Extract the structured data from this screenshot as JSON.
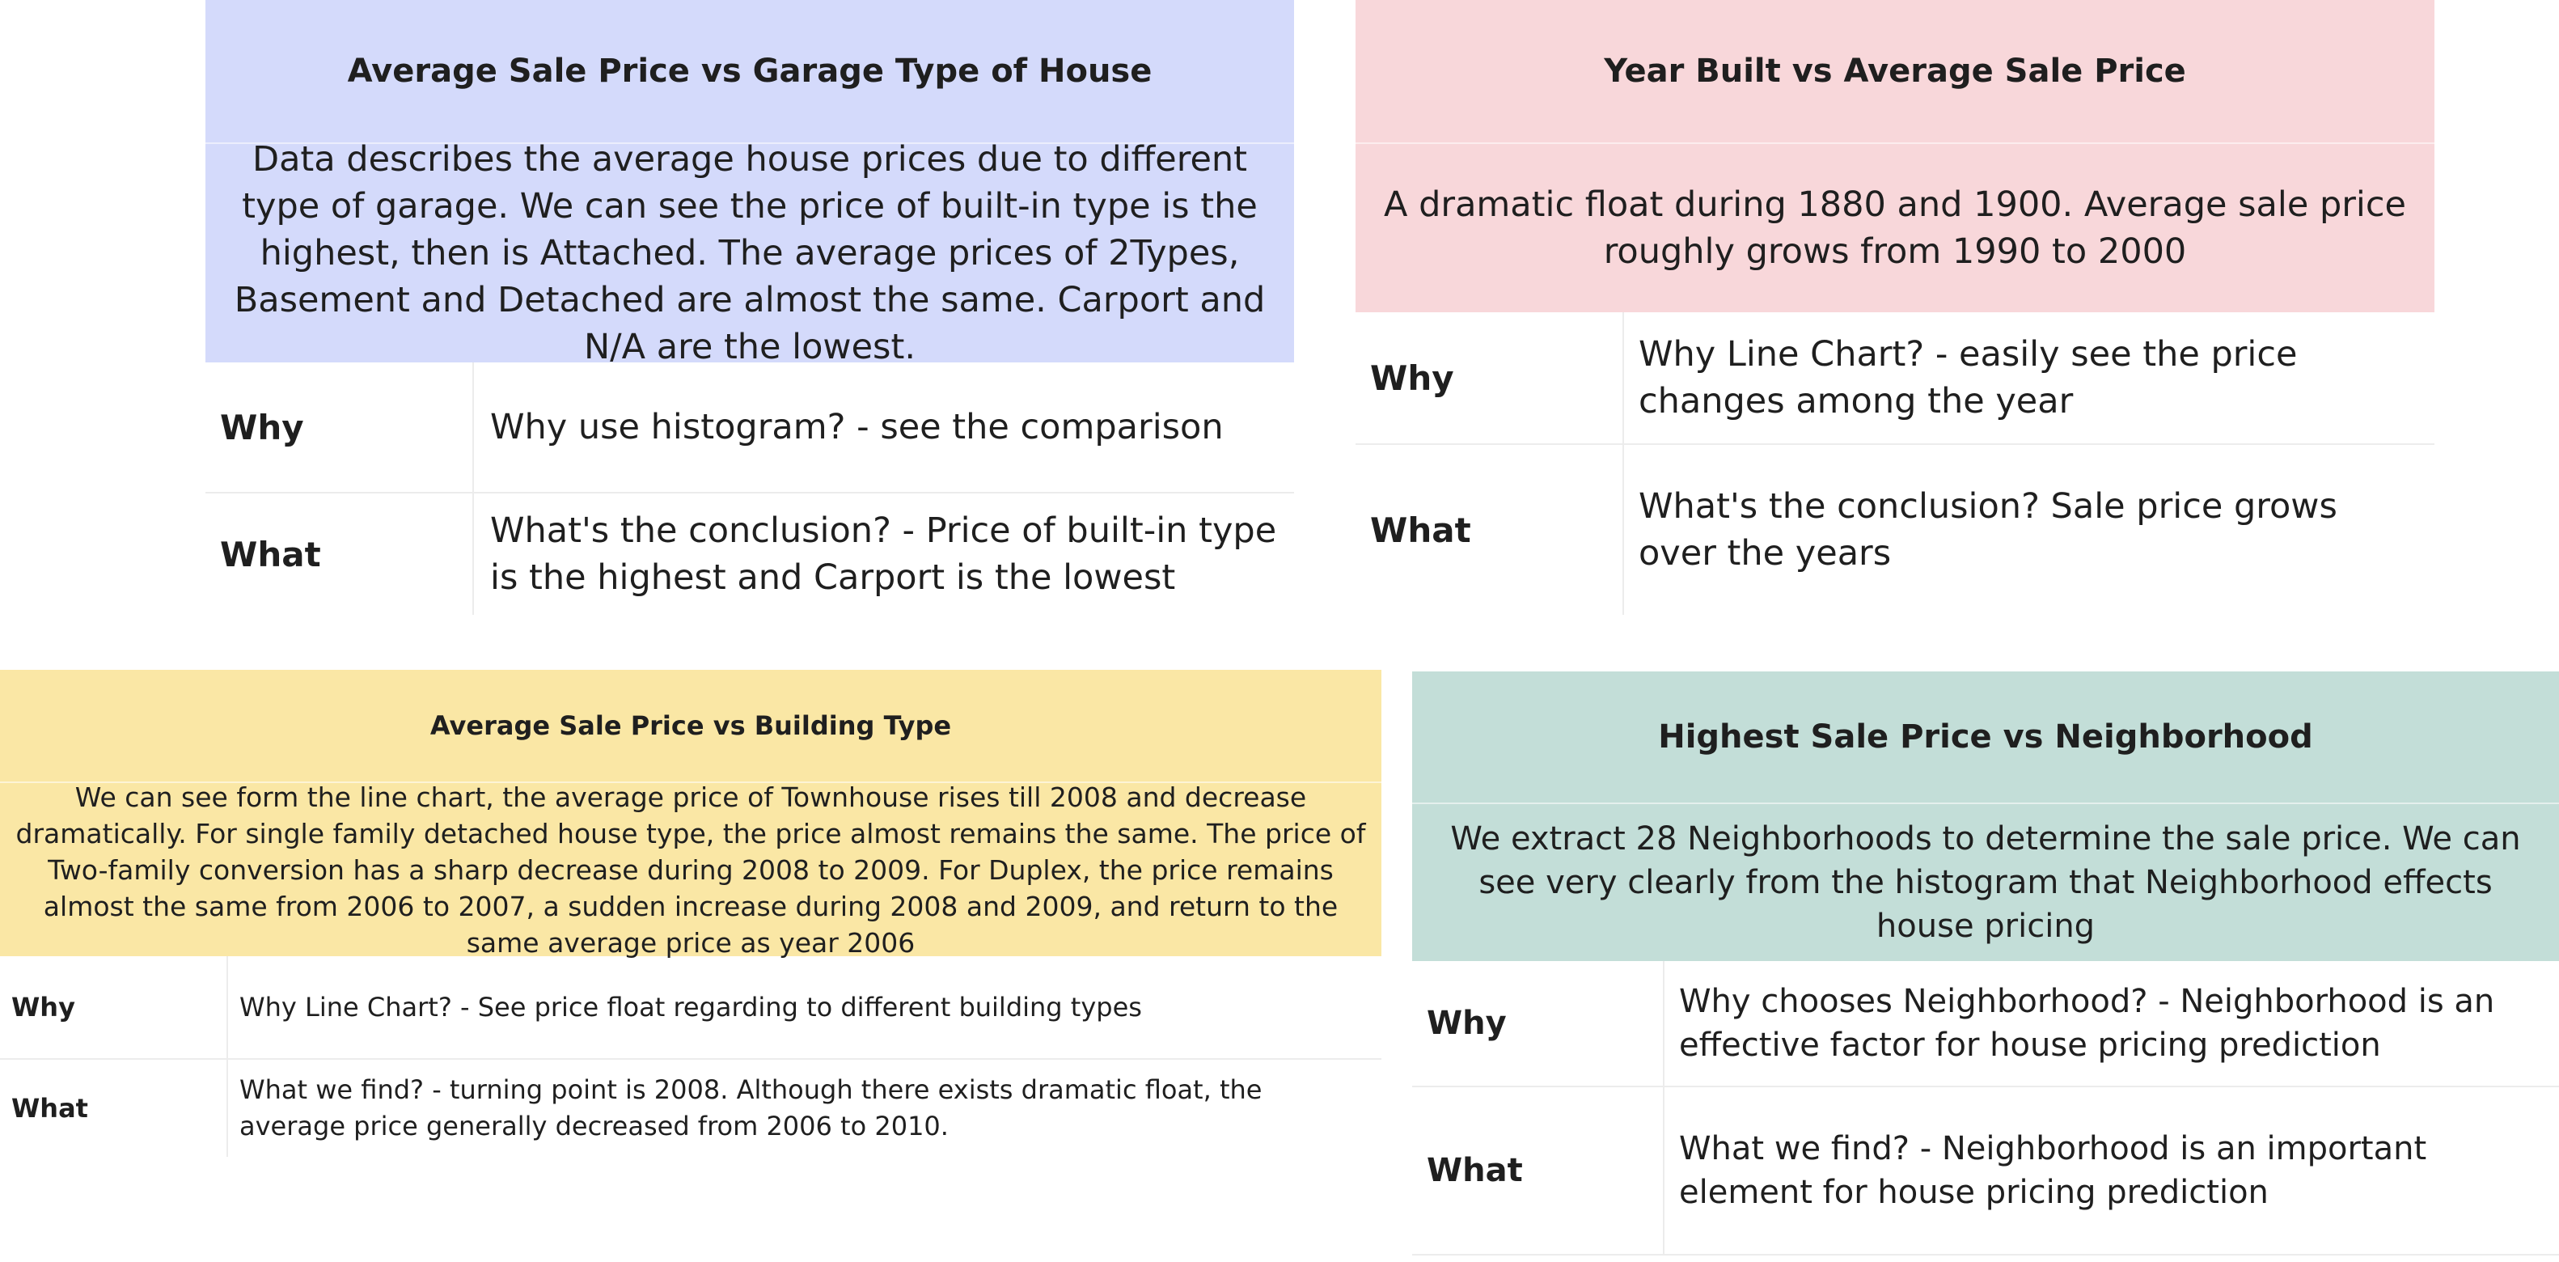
{
  "cards": [
    {
      "title": "Average Sale Price vs Garage Type of House",
      "description": "Data describes the average house prices due to different type of garage.  We can see the price of built-in type is the highest, then is Attached.  The average prices of 2Types, Basement and Detached are almost the same.  Carport and N/A are the lowest.",
      "why_label": "Why",
      "why_text": "Why use histogram?  -  see the comparison",
      "what_label": "What",
      "what_text": "What's the conclusion? - Price of built-in type is the highest and Carport is the lowest",
      "color": "#d4dafb"
    },
    {
      "title": "Year Built vs Average Sale Price",
      "description": "A dramatic float during 1880 and 1900. Average sale price roughly grows from 1990 to 2000",
      "why_label": "Why",
      "why_text": "Why Line Chart?  - easily see the price changes among the year",
      "what_label": "What",
      "what_text": "What's the conclusion? Sale price grows over the years",
      "color": "#f8d7da"
    },
    {
      "title": "Average Sale Price vs Building Type",
      "description": "We can see form the line chart, the average price of Townhouse rises till 2008 and decrease dramatically. For single family detached house type, the price almost remains the same.  The price of Two-family conversion has a sharp decrease during 2008 to 2009. For Duplex, the price remains almost the same from 2006 to 2007, a sudden increase during 2008 and 2009, and return to the same average price as year 2006",
      "why_label": "Why",
      "why_text": "Why Line Chart? -  See price float regarding to different building types",
      "what_label": "What",
      "what_text": "What we find?  - turning point is 2008. Although there exists dramatic float, the average price generally decreased from 2006 to 2010.",
      "color": "#fae7a5"
    },
    {
      "title": "Highest Sale Price vs Neighborhood",
      "description": "We extract 28 Neighborhoods to determine the sale price. We can see very clearly from the histogram that Neighborhood effects house pricing",
      "why_label": "Why",
      "why_text": "Why chooses Neighborhood?  - Neighborhood is an effective factor for house pricing prediction",
      "what_label": "What",
      "what_text": "What we find?  - Neighborhood is an important element for house pricing prediction",
      "color": "#c3ded8"
    }
  ]
}
